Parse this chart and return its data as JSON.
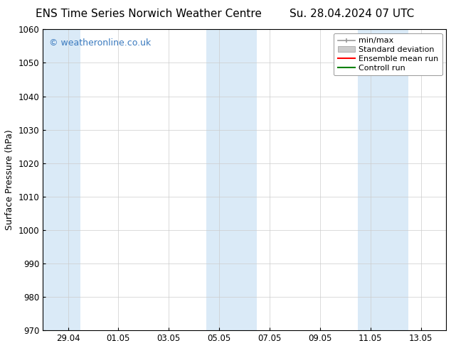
{
  "title_left": "ENS Time Series Norwich Weather Centre",
  "title_right": "Su. 28.04.2024 07 UTC",
  "ylabel": "Surface Pressure (hPa)",
  "ylim": [
    970,
    1060
  ],
  "yticks": [
    970,
    980,
    990,
    1000,
    1010,
    1020,
    1030,
    1040,
    1050,
    1060
  ],
  "xtick_labels": [
    "29.04",
    "01.05",
    "03.05",
    "05.05",
    "07.05",
    "09.05",
    "11.05",
    "13.05"
  ],
  "xtick_positions": [
    1,
    3,
    5,
    7,
    9,
    11,
    13,
    15
  ],
  "xlim": [
    0,
    16
  ],
  "background_color": "#ffffff",
  "plot_bg_color": "#ffffff",
  "shaded_bands": [
    {
      "x_start": 0,
      "x_end": 1.5,
      "color": "#daeaf7"
    },
    {
      "x_start": 6.5,
      "x_end": 8.5,
      "color": "#daeaf7"
    },
    {
      "x_start": 12.5,
      "x_end": 14.5,
      "color": "#daeaf7"
    }
  ],
  "watermark_text": "© weatheronline.co.uk",
  "watermark_color": "#3a7abf",
  "legend_labels": [
    "min/max",
    "Standard deviation",
    "Ensemble mean run",
    "Controll run"
  ],
  "legend_colors": [
    "#999999",
    "#cccccc",
    "#ff0000",
    "#008000"
  ],
  "title_fontsize": 11,
  "axis_label_fontsize": 9,
  "tick_fontsize": 8.5,
  "legend_fontsize": 8,
  "watermark_fontsize": 9,
  "grid_color": "#cccccc",
  "spine_color": "#000000"
}
